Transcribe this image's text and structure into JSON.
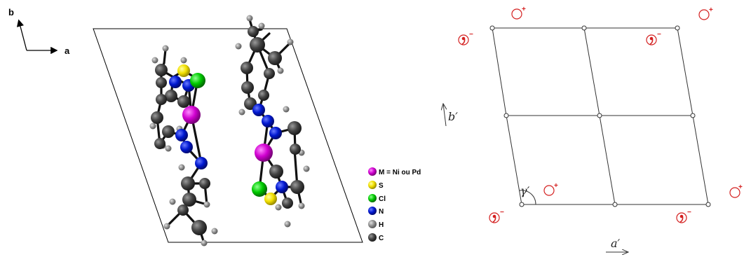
{
  "left_panel": {
    "axes": {
      "b_label": "b",
      "a_label": "a"
    },
    "legend": [
      {
        "label": "M = Ni ou Pd",
        "color": "#d000d0"
      },
      {
        "label": "S",
        "color": "#f2e000"
      },
      {
        "label": "Cl",
        "color": "#00cc00"
      },
      {
        "label": "N",
        "color": "#0018d0"
      },
      {
        "label": "H",
        "color": "#8a8a8a"
      },
      {
        "label": "C",
        "color": "#3a3a3a"
      }
    ]
  },
  "right_panel": {
    "b_prime_label": "b′",
    "a_prime_label": "a′",
    "gamma_label": "γ′",
    "plus_sign": "+",
    "minus_sign": "−",
    "symbol_color": "#d42020"
  }
}
